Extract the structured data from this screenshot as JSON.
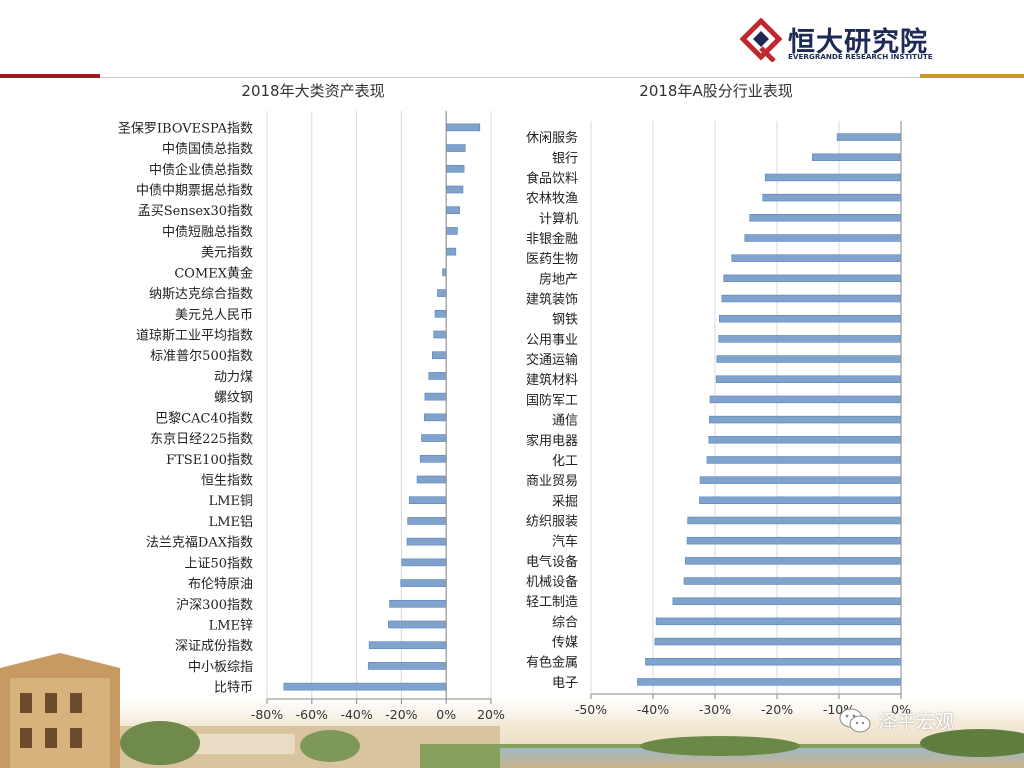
{
  "brand": {
    "name_cn": "恒大研究院",
    "name_en": "EVERGRANDE RESEARCH INSTITUTE",
    "color": "#1e2a56",
    "accent": "#c0282d"
  },
  "watermark": {
    "text": "泽平宏观"
  },
  "colors": {
    "bar": "#7fa3cd",
    "bar_edge": "#5b84b5",
    "grid": "#d9d9d9",
    "rule_red": "#9b1c20",
    "rule_gold": "#c8962b"
  },
  "chart_data": [
    {
      "type": "bar",
      "orientation": "horizontal",
      "title": "2018年大类资产表现",
      "categories": [
        "圣保罗IBOVESPA指数",
        "中债国债总指数",
        "中债企业债总指数",
        "中债中期票据总指数",
        "孟买Sensex30指数",
        "中债短融总指数",
        "美元指数",
        "COMEX黄金",
        "纳斯达克综合指数",
        "美元兑人民币",
        "道琼斯工业平均指数",
        "标准普尔500指数",
        "动力煤",
        "螺纹钢",
        "巴黎CAC40指数",
        "东京日经225指数",
        "FTSE100指数",
        "恒生指数",
        "LME铜",
        "LME铝",
        "法兰克福DAX指数",
        "上证50指数",
        "布伦特原油",
        "沪深300指数",
        "LME锌",
        "深证成份指数",
        "中小板综指",
        "比特币"
      ],
      "values": [
        15.0,
        8.5,
        8.0,
        7.5,
        6.0,
        5.0,
        4.3,
        -1.6,
        -3.9,
        -5.0,
        -5.6,
        -6.2,
        -7.8,
        -9.5,
        -9.8,
        -11.0,
        -11.6,
        -13.0,
        -16.5,
        -17.2,
        -17.5,
        -19.8,
        -20.3,
        -25.3,
        -25.8,
        -34.4,
        -34.8,
        -72.5
      ],
      "xlim": [
        -80,
        20
      ],
      "ticks": [
        "-80%",
        "-60%",
        "-40%",
        "-20%",
        "0%",
        "20%"
      ],
      "tick_values": [
        -80,
        -60,
        -40,
        -20,
        0,
        20
      ]
    },
    {
      "type": "bar",
      "orientation": "horizontal",
      "title": "2018年A股分行业表现",
      "categories": [
        "休闲服务",
        "银行",
        "食品饮料",
        "农林牧渔",
        "计算机",
        "非银金融",
        "医药生物",
        "房地产",
        "建筑装饰",
        "钢铁",
        "公用事业",
        "交通运输",
        "建筑材料",
        "国防军工",
        "通信",
        "家用电器",
        "化工",
        "商业贸易",
        "采掘",
        "纺织服装",
        "汽车",
        "电气设备",
        "机械设备",
        "轻工制造",
        "综合",
        "传媒",
        "有色金属",
        "电子"
      ],
      "values": [
        -10.3,
        -14.3,
        -21.9,
        -22.3,
        -24.4,
        -25.2,
        -27.3,
        -28.6,
        -28.9,
        -29.3,
        -29.4,
        -29.7,
        -29.8,
        -30.8,
        -30.9,
        -31.0,
        -31.3,
        -32.4,
        -32.5,
        -34.4,
        -34.5,
        -34.8,
        -35.0,
        -36.8,
        -39.5,
        -39.7,
        -41.2,
        -42.5
      ],
      "xlim": [
        -50,
        0
      ],
      "ticks": [
        "-50%",
        "-40%",
        "-30%",
        "-20%",
        "-10%",
        "0%"
      ],
      "tick_values": [
        -50,
        -40,
        -30,
        -20,
        -10,
        0
      ]
    }
  ]
}
